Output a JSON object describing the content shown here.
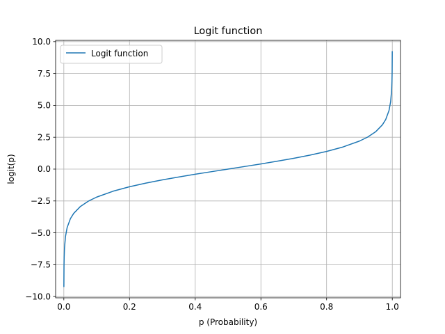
{
  "chart_data": {
    "type": "line",
    "title": "Logit function",
    "xlabel": "p (Probability)",
    "ylabel": "logit(p)",
    "xlim": [
      -0.025,
      1.025
    ],
    "ylim": [
      -10.1,
      10.1
    ],
    "x_ticks": [
      0.0,
      0.2,
      0.4,
      0.6,
      0.8,
      1.0
    ],
    "x_tick_labels": [
      "0.0",
      "0.2",
      "0.4",
      "0.6",
      "0.8",
      "1.0"
    ],
    "y_ticks": [
      -10.0,
      -7.5,
      -5.0,
      -2.5,
      0.0,
      2.5,
      5.0,
      7.5,
      10.0
    ],
    "y_tick_labels": [
      "−10.0",
      "−7.5",
      "−5.0",
      "−2.5",
      "0.0",
      "2.5",
      "5.0",
      "7.5",
      "10.0"
    ],
    "grid": true,
    "legend_position": "top-left",
    "series": [
      {
        "name": "Logit function",
        "color": "#1f77b4",
        "x": [
          0.0001,
          0.0005,
          0.001,
          0.002,
          0.005,
          0.01,
          0.02,
          0.03,
          0.05,
          0.075,
          0.1,
          0.15,
          0.2,
          0.25,
          0.3,
          0.35,
          0.4,
          0.45,
          0.5,
          0.55,
          0.6,
          0.65,
          0.7,
          0.75,
          0.8,
          0.85,
          0.9,
          0.925,
          0.95,
          0.97,
          0.98,
          0.99,
          0.995,
          0.998,
          0.999,
          0.9995,
          0.9999
        ],
        "y": [
          -9.21,
          -7.6,
          -6.907,
          -6.213,
          -5.293,
          -4.595,
          -3.892,
          -3.476,
          -2.944,
          -2.512,
          -2.197,
          -1.735,
          -1.386,
          -1.099,
          -0.847,
          -0.619,
          -0.405,
          -0.201,
          0.0,
          0.201,
          0.405,
          0.619,
          0.847,
          1.099,
          1.386,
          1.735,
          2.197,
          2.512,
          2.944,
          3.476,
          3.892,
          4.595,
          5.293,
          6.213,
          6.907,
          7.6,
          9.21
        ]
      }
    ]
  }
}
